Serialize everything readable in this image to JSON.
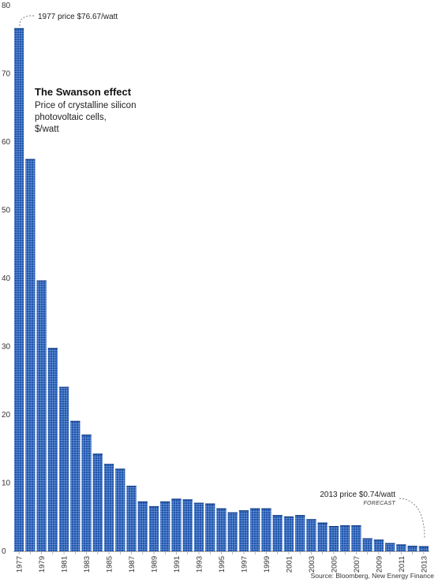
{
  "chart_data": {
    "type": "bar",
    "title": "The Swanson effect",
    "subtitle": [
      "Price of crystalline silicon",
      "photovoltaic cells,",
      "$/watt"
    ],
    "xlabel": "",
    "ylabel": "",
    "ylim": [
      0,
      80
    ],
    "yticks": [
      "0",
      "10",
      "20",
      "30",
      "40",
      "50",
      "60",
      "70",
      "80"
    ],
    "grid": false,
    "categories": [
      "1977",
      "1978",
      "1979",
      "1980",
      "1981",
      "1982",
      "1983",
      "1984",
      "1985",
      "1986",
      "1987",
      "1988",
      "1989",
      "1990",
      "1991",
      "1992",
      "1993",
      "1994",
      "1995",
      "1996",
      "1997",
      "1998",
      "1999",
      "2000",
      "2001",
      "2002",
      "2003",
      "2004",
      "2005",
      "2006",
      "2007",
      "2008",
      "2009",
      "2010",
      "2011",
      "2012",
      "2013"
    ],
    "xtick_labels": [
      "1977",
      "1979",
      "1981",
      "1983",
      "1985",
      "1987",
      "1989",
      "1991",
      "1993",
      "1995",
      "1997",
      "1999",
      "2001",
      "2003",
      "2005",
      "2007",
      "2009",
      "2011",
      "2013"
    ],
    "values": [
      76.67,
      57.5,
      39.7,
      29.8,
      24.1,
      19.1,
      17.1,
      14.3,
      12.8,
      12.1,
      9.6,
      7.3,
      6.6,
      7.3,
      7.7,
      7.6,
      7.1,
      7.0,
      6.3,
      5.7,
      6.0,
      6.3,
      6.3,
      5.3,
      5.1,
      5.3,
      4.7,
      4.2,
      3.7,
      3.8,
      3.8,
      1.9,
      1.7,
      1.2,
      1.0,
      0.8,
      0.74
    ],
    "bar_color": "#1f55ad",
    "cell_line_color": "#7ea3df",
    "annotations": {
      "first": "1977 price $76.67/watt",
      "last": "2013 price $0.74/watt",
      "forecast": "FORECAST"
    },
    "source": "Source: Bloomberg, New Energy Finance"
  }
}
